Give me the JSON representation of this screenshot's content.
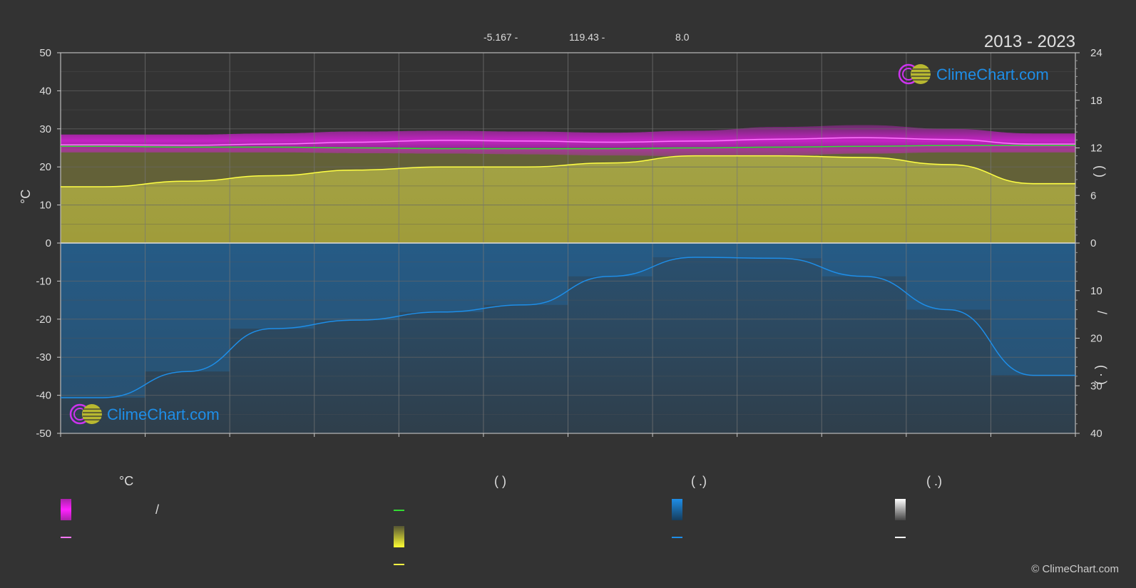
{
  "header": {
    "lat": "-5.167 -",
    "lon": "119.43 -",
    "elev": "8.0",
    "year_range": "2013 - 2023"
  },
  "axes": {
    "left_unit": "°C",
    "right_upper_glyph": "(    )",
    "right_lower_glyph_1": "/",
    "right_lower_glyph_2": "(  ·  )"
  },
  "brand": {
    "label": "ClimeChart.com"
  },
  "legend": {
    "temp_header": "°C",
    "sun_header": "(          )",
    "rain_header": "(   .)",
    "snow_header": "(   .)",
    "slash": "/"
  },
  "copyright": "© ClimeChart.com",
  "colors": {
    "background": "#333333",
    "temp_range": "#cc22cc",
    "temp_mean_line": "#ff77ff",
    "daylight_line": "#33dd33",
    "sunshine_fill": "#c8c83a",
    "sunshine_line": "#ffff44",
    "rain_fill": "#1f6fb0",
    "rain_line": "#1e8ee8",
    "snow_line": "#ffffff"
  },
  "chart_data": {
    "type": "line",
    "months": 12,
    "left_axis": {
      "unit": "°C",
      "ylim": [
        -50,
        50
      ],
      "ticks": [
        50,
        40,
        30,
        20,
        10,
        0,
        -10,
        -20,
        -30,
        -40,
        -50
      ]
    },
    "right_axis_upper": {
      "ylim": [
        0,
        24
      ],
      "ticks": [
        24,
        18,
        12,
        6,
        0
      ]
    },
    "right_axis_lower": {
      "ylim": [
        0,
        40
      ],
      "ticks": [
        0,
        10,
        20,
        30,
        40
      ]
    },
    "series": [
      {
        "key": "temp_max",
        "values": [
          28.5,
          28.5,
          28.8,
          29.3,
          29.5,
          29.3,
          29.0,
          29.5,
          30.5,
          31.0,
          30.0,
          28.8
        ]
      },
      {
        "key": "temp_min",
        "values": [
          23.8,
          23.8,
          23.8,
          23.6,
          23.5,
          23.3,
          23.0,
          22.8,
          23.0,
          23.5,
          23.8,
          23.8
        ]
      },
      {
        "key": "temp_mean",
        "values": [
          25.8,
          25.7,
          26.0,
          26.5,
          27.0,
          26.8,
          26.5,
          26.8,
          27.3,
          27.7,
          27.2,
          26.0
        ]
      },
      {
        "key": "daylight",
        "values": [
          12.2,
          12.1,
          12.1,
          12.0,
          11.9,
          11.9,
          11.9,
          12.0,
          12.1,
          12.2,
          12.3,
          12.3
        ]
      },
      {
        "key": "sunshine",
        "values": [
          7.1,
          7.8,
          8.5,
          9.2,
          9.6,
          9.6,
          10.1,
          11.0,
          11.0,
          10.8,
          9.9,
          7.5
        ]
      },
      {
        "key": "rain_mm_day",
        "values": [
          32.5,
          27.0,
          18.0,
          16.2,
          14.5,
          13.0,
          7.0,
          3.0,
          3.2,
          7.0,
          14.0,
          27.8
        ]
      }
    ]
  }
}
